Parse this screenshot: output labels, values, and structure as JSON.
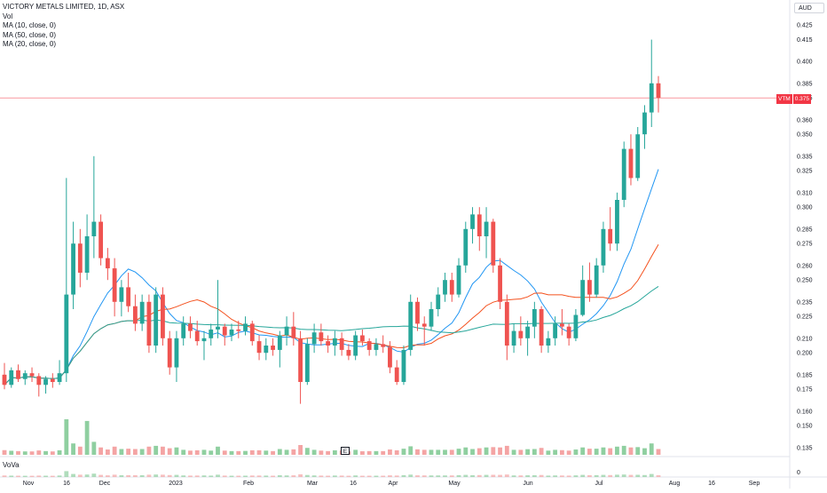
{
  "legend": {
    "symbol_title": "VICTORY METALS LIMITED, 1D, ASX",
    "volume_label": "Vol",
    "ma10_label": "MA (10, close, 0)",
    "ma50_label": "MA (50, close, 0)",
    "ma20_label": "MA (20, close, 0)"
  },
  "subpane": {
    "label": "VoVa"
  },
  "currency": "AUD",
  "last_price": {
    "ticker": "VTM",
    "value": "0.375"
  },
  "earnings_marker": "E",
  "price_axis": [
    "0.425",
    "0.415",
    "0.400",
    "0.385",
    "0.375",
    "0.360",
    "0.350",
    "0.335",
    "0.325",
    "0.310",
    "0.300",
    "0.285",
    "0.275",
    "0.260",
    "0.250",
    "0.235",
    "0.225",
    "0.210",
    "0.200",
    "0.185",
    "0.175",
    "0.160",
    "0.150",
    "0.135"
  ],
  "subpane_axis": "0",
  "time_axis": [
    "Nov",
    "16",
    "Dec",
    "2023",
    "Feb",
    "Mar",
    "16",
    "Apr",
    "May",
    "Jun",
    "Jul",
    "Aug",
    "16",
    "Sep"
  ],
  "colors": {
    "up": "#26a69a",
    "down": "#ef5350",
    "up_volume": "#8fcfa0",
    "down_volume": "#f4a4a4",
    "ma10": "#2196f3",
    "ma20": "#f4511e",
    "ma50": "#26a69a",
    "price_line": "#f23645",
    "grid": "#f0f3fa"
  },
  "chart_data": {
    "type": "candlestick",
    "series": [
      {
        "name": "VTM",
        "values": [
          [
            0.185,
            0.193,
            0.175,
            0.178
          ],
          [
            0.178,
            0.19,
            0.176,
            0.188
          ],
          [
            0.188,
            0.192,
            0.18,
            0.182
          ],
          [
            0.182,
            0.188,
            0.178,
            0.186
          ],
          [
            0.186,
            0.19,
            0.18,
            0.184
          ],
          [
            0.184,
            0.186,
            0.17,
            0.178
          ],
          [
            0.178,
            0.184,
            0.172,
            0.182
          ],
          [
            0.182,
            0.186,
            0.176,
            0.18
          ],
          [
            0.18,
            0.195,
            0.178,
            0.186
          ],
          [
            0.186,
            0.32,
            0.18,
            0.24
          ],
          [
            0.24,
            0.29,
            0.23,
            0.275
          ],
          [
            0.275,
            0.285,
            0.245,
            0.255
          ],
          [
            0.255,
            0.295,
            0.25,
            0.28
          ],
          [
            0.28,
            0.335,
            0.265,
            0.29
          ],
          [
            0.29,
            0.295,
            0.26,
            0.265
          ],
          [
            0.265,
            0.272,
            0.25,
            0.258
          ],
          [
            0.258,
            0.265,
            0.225,
            0.235
          ],
          [
            0.235,
            0.25,
            0.225,
            0.245
          ],
          [
            0.245,
            0.255,
            0.228,
            0.232
          ],
          [
            0.232,
            0.24,
            0.215,
            0.22
          ],
          [
            0.22,
            0.24,
            0.215,
            0.235
          ],
          [
            0.235,
            0.24,
            0.2,
            0.205
          ],
          [
            0.205,
            0.245,
            0.2,
            0.24
          ],
          [
            0.24,
            0.245,
            0.205,
            0.21
          ],
          [
            0.21,
            0.215,
            0.185,
            0.19
          ],
          [
            0.19,
            0.215,
            0.18,
            0.21
          ],
          [
            0.21,
            0.225,
            0.205,
            0.22
          ],
          [
            0.22,
            0.225,
            0.21,
            0.215
          ],
          [
            0.215,
            0.222,
            0.205,
            0.208
          ],
          [
            0.208,
            0.215,
            0.195,
            0.21
          ],
          [
            0.21,
            0.22,
            0.205,
            0.216
          ],
          [
            0.216,
            0.25,
            0.21,
            0.218
          ],
          [
            0.218,
            0.22,
            0.205,
            0.212
          ],
          [
            0.212,
            0.22,
            0.208,
            0.216
          ],
          [
            0.216,
            0.222,
            0.21,
            0.215
          ],
          [
            0.215,
            0.225,
            0.212,
            0.22
          ],
          [
            0.22,
            0.222,
            0.205,
            0.208
          ],
          [
            0.208,
            0.212,
            0.195,
            0.2
          ],
          [
            0.2,
            0.21,
            0.195,
            0.205
          ],
          [
            0.205,
            0.21,
            0.198,
            0.202
          ],
          [
            0.202,
            0.215,
            0.19,
            0.212
          ],
          [
            0.212,
            0.225,
            0.205,
            0.218
          ],
          [
            0.218,
            0.228,
            0.205,
            0.21
          ],
          [
            0.21,
            0.215,
            0.165,
            0.18
          ],
          [
            0.18,
            0.21,
            0.178,
            0.206
          ],
          [
            0.206,
            0.22,
            0.2,
            0.214
          ],
          [
            0.214,
            0.22,
            0.205,
            0.208
          ],
          [
            0.208,
            0.212,
            0.2,
            0.205
          ],
          [
            0.205,
            0.215,
            0.198,
            0.21
          ],
          [
            0.21,
            0.214,
            0.198,
            0.202
          ],
          [
            0.202,
            0.206,
            0.195,
            0.198
          ],
          [
            0.198,
            0.215,
            0.195,
            0.212
          ],
          [
            0.212,
            0.216,
            0.205,
            0.208
          ],
          [
            0.208,
            0.21,
            0.198,
            0.202
          ],
          [
            0.202,
            0.21,
            0.198,
            0.206
          ],
          [
            0.206,
            0.212,
            0.2,
            0.204
          ],
          [
            0.204,
            0.208,
            0.186,
            0.19
          ],
          [
            0.19,
            0.195,
            0.178,
            0.18
          ],
          [
            0.18,
            0.205,
            0.178,
            0.202
          ],
          [
            0.202,
            0.24,
            0.198,
            0.235
          ],
          [
            0.235,
            0.238,
            0.215,
            0.22
          ],
          [
            0.22,
            0.225,
            0.205,
            0.218
          ],
          [
            0.218,
            0.235,
            0.215,
            0.23
          ],
          [
            0.23,
            0.245,
            0.225,
            0.24
          ],
          [
            0.24,
            0.255,
            0.235,
            0.25
          ],
          [
            0.25,
            0.255,
            0.235,
            0.24
          ],
          [
            0.24,
            0.265,
            0.238,
            0.26
          ],
          [
            0.26,
            0.29,
            0.255,
            0.285
          ],
          [
            0.285,
            0.3,
            0.275,
            0.295
          ],
          [
            0.295,
            0.3,
            0.27,
            0.28
          ],
          [
            0.28,
            0.3,
            0.265,
            0.29
          ],
          [
            0.29,
            0.292,
            0.255,
            0.26
          ],
          [
            0.26,
            0.265,
            0.23,
            0.235
          ],
          [
            0.235,
            0.24,
            0.195,
            0.205
          ],
          [
            0.205,
            0.22,
            0.2,
            0.215
          ],
          [
            0.215,
            0.225,
            0.205,
            0.21
          ],
          [
            0.21,
            0.222,
            0.198,
            0.218
          ],
          [
            0.218,
            0.235,
            0.21,
            0.23
          ],
          [
            0.23,
            0.232,
            0.2,
            0.205
          ],
          [
            0.205,
            0.215,
            0.2,
            0.21
          ],
          [
            0.21,
            0.225,
            0.205,
            0.22
          ],
          [
            0.22,
            0.23,
            0.212,
            0.218
          ],
          [
            0.218,
            0.22,
            0.205,
            0.21
          ],
          [
            0.21,
            0.23,
            0.208,
            0.226
          ],
          [
            0.226,
            0.26,
            0.225,
            0.25
          ],
          [
            0.25,
            0.262,
            0.235,
            0.24
          ],
          [
            0.24,
            0.265,
            0.238,
            0.26
          ],
          [
            0.26,
            0.29,
            0.255,
            0.285
          ],
          [
            0.285,
            0.3,
            0.27,
            0.275
          ],
          [
            0.275,
            0.31,
            0.27,
            0.305
          ],
          [
            0.305,
            0.345,
            0.3,
            0.34
          ],
          [
            0.34,
            0.35,
            0.315,
            0.32
          ],
          [
            0.32,
            0.355,
            0.318,
            0.35
          ],
          [
            0.35,
            0.37,
            0.34,
            0.365
          ],
          [
            0.365,
            0.415,
            0.355,
            0.385
          ],
          [
            0.385,
            0.39,
            0.365,
            0.375
          ]
        ]
      }
    ],
    "moving_averages": [
      {
        "name": "MA (10, close, 0)",
        "period": 10
      },
      {
        "name": "MA (20, close, 0)",
        "period": 20
      },
      {
        "name": "MA (50, close, 0)",
        "period": 50
      }
    ],
    "ylim": [
      0.13,
      0.43
    ]
  }
}
